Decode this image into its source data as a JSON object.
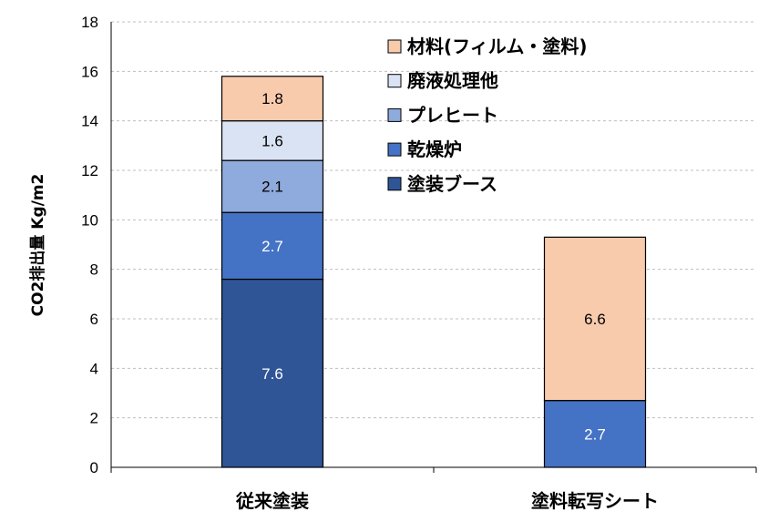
{
  "chart_data": {
    "type": "bar",
    "stacked": true,
    "categories": [
      "従来塗装",
      "塗料転写シート"
    ],
    "ylabel": "CO2排出量 Kg/m2",
    "xlabel": "",
    "ylim": [
      0,
      18
    ],
    "yticks": [
      0,
      2,
      4,
      6,
      8,
      10,
      12,
      14,
      16,
      18
    ],
    "grid": "horizontal-dashed",
    "legend_position": "top-right",
    "series": [
      {
        "name": "塗装ブース",
        "values": [
          7.6,
          0
        ],
        "labels": [
          "7.6",
          ""
        ],
        "color": "#2f5597",
        "label_color": "#ffffff"
      },
      {
        "name": "乾燥炉",
        "values": [
          2.7,
          2.7
        ],
        "labels": [
          "2.7",
          "2.7"
        ],
        "color": "#4472c4",
        "label_color": "#ffffff"
      },
      {
        "name": "プレヒート",
        "values": [
          2.1,
          0
        ],
        "labels": [
          "2.1",
          ""
        ],
        "color": "#8faadc",
        "label_color": "#000000"
      },
      {
        "name": "廃液処理他",
        "values": [
          1.6,
          0
        ],
        "labels": [
          "1.6",
          ""
        ],
        "color": "#dae3f3",
        "label_color": "#000000"
      },
      {
        "name": "材料(フィルム・塗料)",
        "values": [
          1.8,
          6.6
        ],
        "labels": [
          "1.8",
          "6.6"
        ],
        "color": "#f8cbad",
        "label_color": "#000000"
      }
    ]
  }
}
